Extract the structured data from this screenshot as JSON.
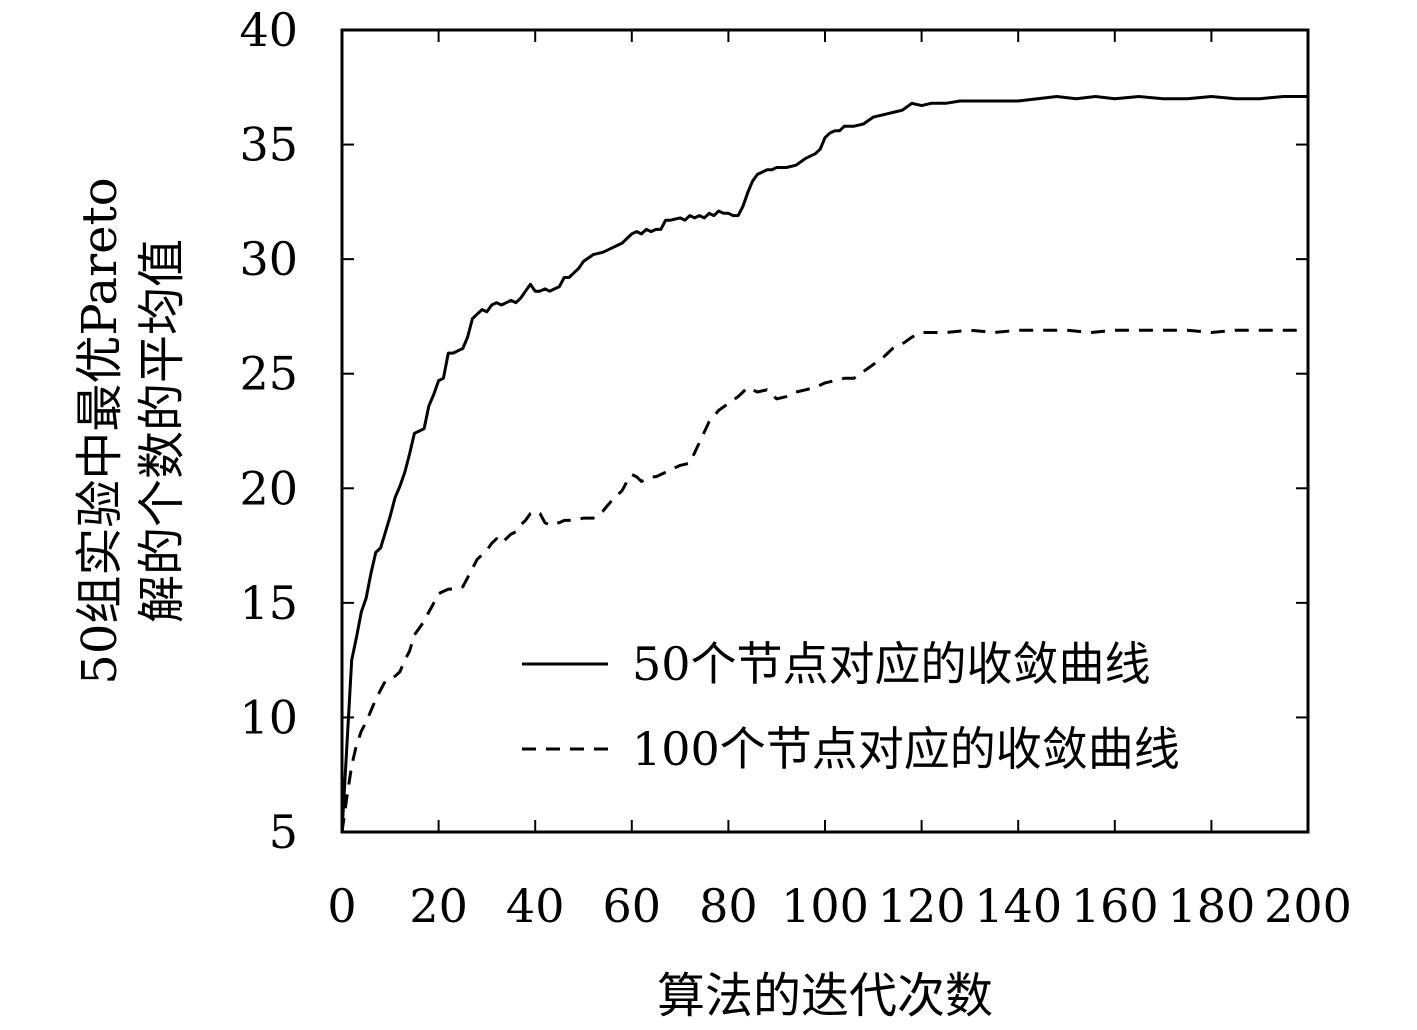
{
  "chart_data": {
    "type": "line",
    "title": "",
    "xlabel": "算法的迭代次数",
    "ylabel_lines": [
      "50组实验中最优Pareto",
      "解的个数的平均值"
    ],
    "xlim": [
      0,
      200
    ],
    "ylim": [
      5,
      40
    ],
    "xticks": [
      0,
      20,
      40,
      60,
      80,
      100,
      120,
      140,
      160,
      180,
      200
    ],
    "yticks": [
      5,
      10,
      15,
      20,
      25,
      30,
      35,
      40
    ],
    "grid": false,
    "legend_position": "bottom-right",
    "series": [
      {
        "name": "50个节点对应的收敛曲线",
        "style": "solid",
        "color": "#000000",
        "points": [
          [
            0,
            5.0
          ],
          [
            1,
            8.7
          ],
          [
            2,
            12.5
          ],
          [
            3,
            13.5
          ],
          [
            4,
            14.6
          ],
          [
            5,
            15.2
          ],
          [
            6,
            16.3
          ],
          [
            7,
            17.2
          ],
          [
            8,
            17.4
          ],
          [
            9,
            18.1
          ],
          [
            10,
            18.8
          ],
          [
            11,
            19.6
          ],
          [
            12,
            20.1
          ],
          [
            13,
            20.7
          ],
          [
            14,
            21.5
          ],
          [
            15,
            22.4
          ],
          [
            16,
            22.5
          ],
          [
            17,
            22.6
          ],
          [
            18,
            23.6
          ],
          [
            19,
            24.1
          ],
          [
            20,
            24.7
          ],
          [
            21,
            24.8
          ],
          [
            22,
            25.9
          ],
          [
            23,
            25.9
          ],
          [
            24,
            26.0
          ],
          [
            25,
            26.1
          ],
          [
            26,
            26.6
          ],
          [
            27,
            27.4
          ],
          [
            28,
            27.6
          ],
          [
            29,
            27.8
          ],
          [
            30,
            27.7
          ],
          [
            31,
            28.0
          ],
          [
            32,
            28.1
          ],
          [
            33,
            28.0
          ],
          [
            34,
            28.1
          ],
          [
            35,
            28.2
          ],
          [
            36,
            28.1
          ],
          [
            37,
            28.3
          ],
          [
            38,
            28.6
          ],
          [
            39,
            28.9
          ],
          [
            40,
            28.6
          ],
          [
            41,
            28.6
          ],
          [
            42,
            28.7
          ],
          [
            43,
            28.6
          ],
          [
            44,
            28.7
          ],
          [
            45,
            28.8
          ],
          [
            46,
            29.2
          ],
          [
            47,
            29.2
          ],
          [
            48,
            29.4
          ],
          [
            49,
            29.6
          ],
          [
            50,
            29.9
          ],
          [
            52,
            30.2
          ],
          [
            54,
            30.3
          ],
          [
            56,
            30.5
          ],
          [
            58,
            30.7
          ],
          [
            60,
            31.1
          ],
          [
            61,
            31.2
          ],
          [
            62,
            31.1
          ],
          [
            63,
            31.3
          ],
          [
            64,
            31.2
          ],
          [
            65,
            31.3
          ],
          [
            66,
            31.3
          ],
          [
            67,
            31.7
          ],
          [
            68,
            31.7
          ],
          [
            70,
            31.8
          ],
          [
            71,
            31.7
          ],
          [
            72,
            31.9
          ],
          [
            73,
            31.8
          ],
          [
            74,
            31.9
          ],
          [
            75,
            31.8
          ],
          [
            76,
            32.0
          ],
          [
            77,
            31.9
          ],
          [
            78,
            32.1
          ],
          [
            79,
            32.0
          ],
          [
            80,
            32.0
          ],
          [
            81,
            31.9
          ],
          [
            82,
            31.9
          ],
          [
            83,
            32.3
          ],
          [
            84,
            32.9
          ],
          [
            85,
            33.4
          ],
          [
            86,
            33.7
          ],
          [
            87,
            33.8
          ],
          [
            88,
            33.9
          ],
          [
            89,
            33.9
          ],
          [
            90,
            34.0
          ],
          [
            92,
            34.0
          ],
          [
            94,
            34.1
          ],
          [
            96,
            34.4
          ],
          [
            98,
            34.6
          ],
          [
            99,
            34.8
          ],
          [
            100,
            35.3
          ],
          [
            101,
            35.5
          ],
          [
            102,
            35.6
          ],
          [
            103,
            35.6
          ],
          [
            104,
            35.8
          ],
          [
            105,
            35.8
          ],
          [
            106,
            35.8
          ],
          [
            108,
            35.9
          ],
          [
            110,
            36.2
          ],
          [
            112,
            36.3
          ],
          [
            114,
            36.4
          ],
          [
            116,
            36.5
          ],
          [
            118,
            36.8
          ],
          [
            120,
            36.7
          ],
          [
            122,
            36.8
          ],
          [
            125,
            36.8
          ],
          [
            128,
            36.9
          ],
          [
            132,
            36.9
          ],
          [
            136,
            36.9
          ],
          [
            140,
            36.9
          ],
          [
            144,
            37.0
          ],
          [
            148,
            37.1
          ],
          [
            152,
            37.0
          ],
          [
            156,
            37.1
          ],
          [
            160,
            37.0
          ],
          [
            165,
            37.1
          ],
          [
            170,
            37.0
          ],
          [
            175,
            37.0
          ],
          [
            180,
            37.1
          ],
          [
            185,
            37.0
          ],
          [
            190,
            37.0
          ],
          [
            195,
            37.1
          ],
          [
            200,
            37.1
          ]
        ]
      },
      {
        "name": "100个节点对应的收敛曲线",
        "style": "dashed",
        "color": "#000000",
        "points": [
          [
            0,
            5.0
          ],
          [
            1,
            6.5
          ],
          [
            2,
            7.9
          ],
          [
            3,
            8.8
          ],
          [
            4,
            9.4
          ],
          [
            5,
            9.8
          ],
          [
            6,
            10.3
          ],
          [
            7,
            10.8
          ],
          [
            8,
            11.2
          ],
          [
            9,
            11.6
          ],
          [
            10,
            11.7
          ],
          [
            11,
            11.8
          ],
          [
            12,
            12.0
          ],
          [
            13,
            12.5
          ],
          [
            14,
            12.9
          ],
          [
            15,
            13.6
          ],
          [
            16,
            13.9
          ],
          [
            17,
            14.2
          ],
          [
            18,
            14.6
          ],
          [
            19,
            15.0
          ],
          [
            20,
            15.4
          ],
          [
            21,
            15.5
          ],
          [
            22,
            15.6
          ],
          [
            24,
            15.6
          ],
          [
            25,
            15.7
          ],
          [
            26,
            16.1
          ],
          [
            27,
            16.5
          ],
          [
            28,
            16.9
          ],
          [
            29,
            17.1
          ],
          [
            30,
            17.3
          ],
          [
            31,
            17.6
          ],
          [
            32,
            17.8
          ],
          [
            33,
            17.6
          ],
          [
            34,
            17.8
          ],
          [
            35,
            18.0
          ],
          [
            36,
            18.1
          ],
          [
            37,
            18.4
          ],
          [
            38,
            18.6
          ],
          [
            39,
            18.9
          ],
          [
            40,
            19.0
          ],
          [
            41,
            18.9
          ],
          [
            42,
            18.5
          ],
          [
            43,
            18.4
          ],
          [
            44,
            18.5
          ],
          [
            45,
            18.5
          ],
          [
            46,
            18.6
          ],
          [
            48,
            18.6
          ],
          [
            50,
            18.7
          ],
          [
            52,
            18.7
          ],
          [
            54,
            19.0
          ],
          [
            56,
            19.5
          ],
          [
            58,
            19.9
          ],
          [
            59,
            20.3
          ],
          [
            60,
            20.6
          ],
          [
            61,
            20.5
          ],
          [
            62,
            20.3
          ],
          [
            63,
            20.4
          ],
          [
            64,
            20.5
          ],
          [
            65,
            20.5
          ],
          [
            66,
            20.6
          ],
          [
            68,
            20.8
          ],
          [
            70,
            21.0
          ],
          [
            72,
            21.1
          ],
          [
            74,
            22.0
          ],
          [
            76,
            22.9
          ],
          [
            78,
            23.4
          ],
          [
            80,
            23.7
          ],
          [
            82,
            24.0
          ],
          [
            84,
            24.4
          ],
          [
            86,
            24.2
          ],
          [
            88,
            24.3
          ],
          [
            90,
            23.9
          ],
          [
            92,
            24.0
          ],
          [
            94,
            24.2
          ],
          [
            96,
            24.3
          ],
          [
            98,
            24.4
          ],
          [
            100,
            24.6
          ],
          [
            102,
            24.7
          ],
          [
            104,
            24.8
          ],
          [
            106,
            24.8
          ],
          [
            108,
            25.1
          ],
          [
            110,
            25.4
          ],
          [
            112,
            25.7
          ],
          [
            114,
            26.1
          ],
          [
            116,
            26.3
          ],
          [
            118,
            26.6
          ],
          [
            120,
            26.8
          ],
          [
            122,
            26.8
          ],
          [
            125,
            26.8
          ],
          [
            130,
            26.9
          ],
          [
            135,
            26.8
          ],
          [
            140,
            26.9
          ],
          [
            145,
            26.9
          ],
          [
            150,
            26.9
          ],
          [
            155,
            26.8
          ],
          [
            160,
            26.9
          ],
          [
            165,
            26.9
          ],
          [
            170,
            26.9
          ],
          [
            175,
            26.9
          ],
          [
            180,
            26.8
          ],
          [
            185,
            26.9
          ],
          [
            190,
            26.9
          ],
          [
            195,
            26.9
          ],
          [
            200,
            26.9
          ]
        ]
      }
    ]
  }
}
